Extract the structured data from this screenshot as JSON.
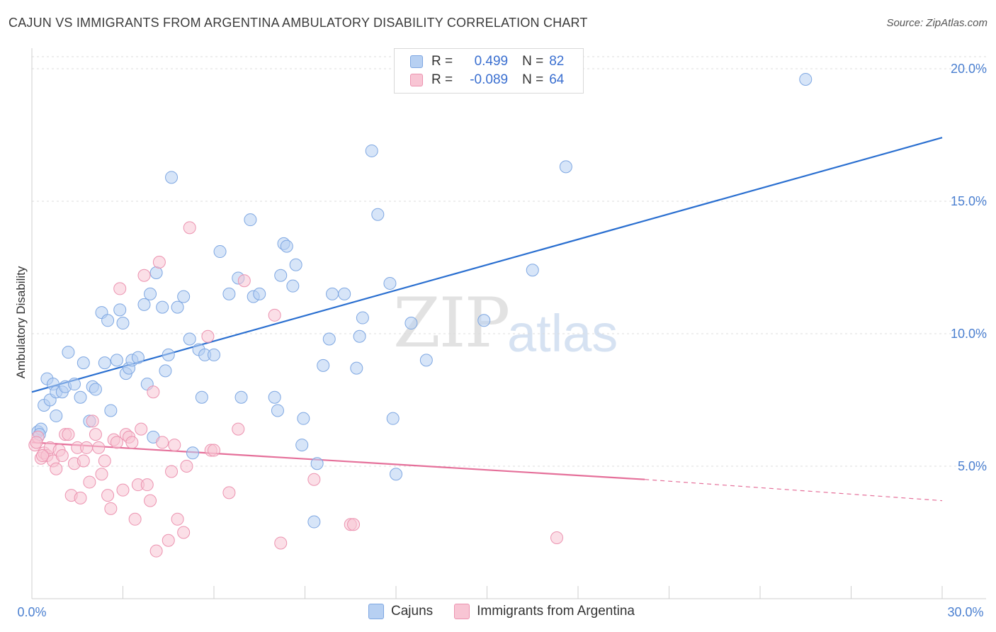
{
  "title": "CAJUN VS IMMIGRANTS FROM ARGENTINA AMBULATORY DISABILITY CORRELATION CHART",
  "source": "Source: ZipAtlas.com",
  "watermark": {
    "zip": "ZIP",
    "atlas": "atlas"
  },
  "legend": {
    "r_label": "R =",
    "n_label": "N =",
    "series": [
      {
        "r": "0.499",
        "n": "82"
      },
      {
        "r": "-0.089",
        "n": "64"
      }
    ]
  },
  "bottom_legend": [
    "Cajuns",
    "Immigrants from Argentina"
  ],
  "colors": {
    "blue_fill": "#b7d0f2",
    "blue_stroke": "#7ea7e2",
    "blue_line": "#2a6fd0",
    "pink_fill": "#f8c5d4",
    "pink_stroke": "#ec93b0",
    "pink_line": "#e5709a",
    "grid": "#dcdcdc",
    "tick_text": "#4a7fd0"
  },
  "chart_data": {
    "type": "scatter",
    "title": "CAJUN VS IMMIGRANTS FROM ARGENTINA AMBULATORY DISABILITY CORRELATION CHART",
    "xlabel": "",
    "ylabel": "Ambulatory Disability",
    "xlim": [
      0,
      30
    ],
    "ylim": [
      0,
      20
    ],
    "x_tick_labels": [
      "0.0%",
      "30.0%"
    ],
    "y_ticks": [
      5,
      10,
      15,
      20
    ],
    "y_tick_labels": [
      "5.0%",
      "10.0%",
      "15.0%",
      "20.0%"
    ],
    "grid": "horizontal dashed",
    "series": [
      {
        "name": "Cajuns",
        "points": [
          [
            0.2,
            6.3
          ],
          [
            0.3,
            6.4
          ],
          [
            0.4,
            7.3
          ],
          [
            0.5,
            8.3
          ],
          [
            0.6,
            7.5
          ],
          [
            0.7,
            8.1
          ],
          [
            0.8,
            6.9
          ],
          [
            0.8,
            7.8
          ],
          [
            1.0,
            7.8
          ],
          [
            1.1,
            8.0
          ],
          [
            1.2,
            9.3
          ],
          [
            1.4,
            8.1
          ],
          [
            1.6,
            7.6
          ],
          [
            1.7,
            8.9
          ],
          [
            1.9,
            6.7
          ],
          [
            2.0,
            8.0
          ],
          [
            2.1,
            7.9
          ],
          [
            2.3,
            10.8
          ],
          [
            2.4,
            8.9
          ],
          [
            2.5,
            10.5
          ],
          [
            2.6,
            7.1
          ],
          [
            2.8,
            9.0
          ],
          [
            2.9,
            10.9
          ],
          [
            3.0,
            10.4
          ],
          [
            3.1,
            8.5
          ],
          [
            3.2,
            8.7
          ],
          [
            3.3,
            9.0
          ],
          [
            3.5,
            9.1
          ],
          [
            3.7,
            11.1
          ],
          [
            3.8,
            8.1
          ],
          [
            3.9,
            11.5
          ],
          [
            4.0,
            6.1
          ],
          [
            4.1,
            12.3
          ],
          [
            4.3,
            11.0
          ],
          [
            4.4,
            8.6
          ],
          [
            4.5,
            9.2
          ],
          [
            4.6,
            15.9
          ],
          [
            4.8,
            11.0
          ],
          [
            5.0,
            11.4
          ],
          [
            5.2,
            9.8
          ],
          [
            5.3,
            5.5
          ],
          [
            5.5,
            9.4
          ],
          [
            5.6,
            7.6
          ],
          [
            5.7,
            9.2
          ],
          [
            6.0,
            9.2
          ],
          [
            6.2,
            13.1
          ],
          [
            6.5,
            11.5
          ],
          [
            6.8,
            12.1
          ],
          [
            6.9,
            7.6
          ],
          [
            7.2,
            14.3
          ],
          [
            7.3,
            11.4
          ],
          [
            7.5,
            11.5
          ],
          [
            8.0,
            7.6
          ],
          [
            8.1,
            7.1
          ],
          [
            8.2,
            12.2
          ],
          [
            8.3,
            13.4
          ],
          [
            8.4,
            13.3
          ],
          [
            8.6,
            11.8
          ],
          [
            8.7,
            12.6
          ],
          [
            8.9,
            5.8
          ],
          [
            8.95,
            6.8
          ],
          [
            9.3,
            2.9
          ],
          [
            9.4,
            5.1
          ],
          [
            9.6,
            8.8
          ],
          [
            9.8,
            9.8
          ],
          [
            9.9,
            11.5
          ],
          [
            10.3,
            11.5
          ],
          [
            10.7,
            8.7
          ],
          [
            10.8,
            9.9
          ],
          [
            10.9,
            10.6
          ],
          [
            11.2,
            16.9
          ],
          [
            11.4,
            14.5
          ],
          [
            11.8,
            11.9
          ],
          [
            11.9,
            6.8
          ],
          [
            12.0,
            4.7
          ],
          [
            12.5,
            10.4
          ],
          [
            13.0,
            9.0
          ],
          [
            14.9,
            10.5
          ],
          [
            16.5,
            12.4
          ],
          [
            17.6,
            16.3
          ],
          [
            25.5,
            19.6
          ],
          [
            0.25,
            6.2
          ]
        ]
      },
      {
        "name": "Immigrants from Argentina",
        "points": [
          [
            0.1,
            5.8
          ],
          [
            0.2,
            6.1
          ],
          [
            0.3,
            5.3
          ],
          [
            0.4,
            5.5
          ],
          [
            0.5,
            5.4
          ],
          [
            0.6,
            5.7
          ],
          [
            0.7,
            5.2
          ],
          [
            0.8,
            4.9
          ],
          [
            0.9,
            5.6
          ],
          [
            1.0,
            5.4
          ],
          [
            1.1,
            6.2
          ],
          [
            1.2,
            6.2
          ],
          [
            1.3,
            3.9
          ],
          [
            1.4,
            5.1
          ],
          [
            1.5,
            5.7
          ],
          [
            1.6,
            3.8
          ],
          [
            1.7,
            5.2
          ],
          [
            1.8,
            5.7
          ],
          [
            1.9,
            4.4
          ],
          [
            2.0,
            6.7
          ],
          [
            2.1,
            6.2
          ],
          [
            2.2,
            5.7
          ],
          [
            2.3,
            4.7
          ],
          [
            2.4,
            5.2
          ],
          [
            2.5,
            3.9
          ],
          [
            2.6,
            3.4
          ],
          [
            2.7,
            6.0
          ],
          [
            2.8,
            5.9
          ],
          [
            2.9,
            11.7
          ],
          [
            3.0,
            4.1
          ],
          [
            3.1,
            6.2
          ],
          [
            3.2,
            6.1
          ],
          [
            3.3,
            5.9
          ],
          [
            3.4,
            3.0
          ],
          [
            3.5,
            4.3
          ],
          [
            3.6,
            6.4
          ],
          [
            3.7,
            12.2
          ],
          [
            3.8,
            4.3
          ],
          [
            3.9,
            3.7
          ],
          [
            4.0,
            7.8
          ],
          [
            4.1,
            1.8
          ],
          [
            4.2,
            12.7
          ],
          [
            4.3,
            5.9
          ],
          [
            4.5,
            2.2
          ],
          [
            4.6,
            4.8
          ],
          [
            4.7,
            5.8
          ],
          [
            4.8,
            3.0
          ],
          [
            5.0,
            2.5
          ],
          [
            5.1,
            5.0
          ],
          [
            5.2,
            14.0
          ],
          [
            5.8,
            9.9
          ],
          [
            5.9,
            5.6
          ],
          [
            6.0,
            5.6
          ],
          [
            6.5,
            4.0
          ],
          [
            6.8,
            6.4
          ],
          [
            7.0,
            12.0
          ],
          [
            8.0,
            10.7
          ],
          [
            8.2,
            2.1
          ],
          [
            9.3,
            4.5
          ],
          [
            10.5,
            2.8
          ],
          [
            10.6,
            2.8
          ],
          [
            17.3,
            2.3
          ],
          [
            0.15,
            5.9
          ],
          [
            0.35,
            5.4
          ]
        ]
      }
    ],
    "trend_lines": [
      {
        "series": "Cajuns",
        "x": [
          0,
          30
        ],
        "y": [
          7.8,
          17.4
        ]
      },
      {
        "series": "Immigrants from Argentina",
        "x": [
          0,
          20.2
        ],
        "y": [
          5.9,
          4.5
        ],
        "dashed_x": [
          20.2,
          30
        ],
        "dashed_y": [
          4.5,
          3.7
        ]
      }
    ]
  }
}
